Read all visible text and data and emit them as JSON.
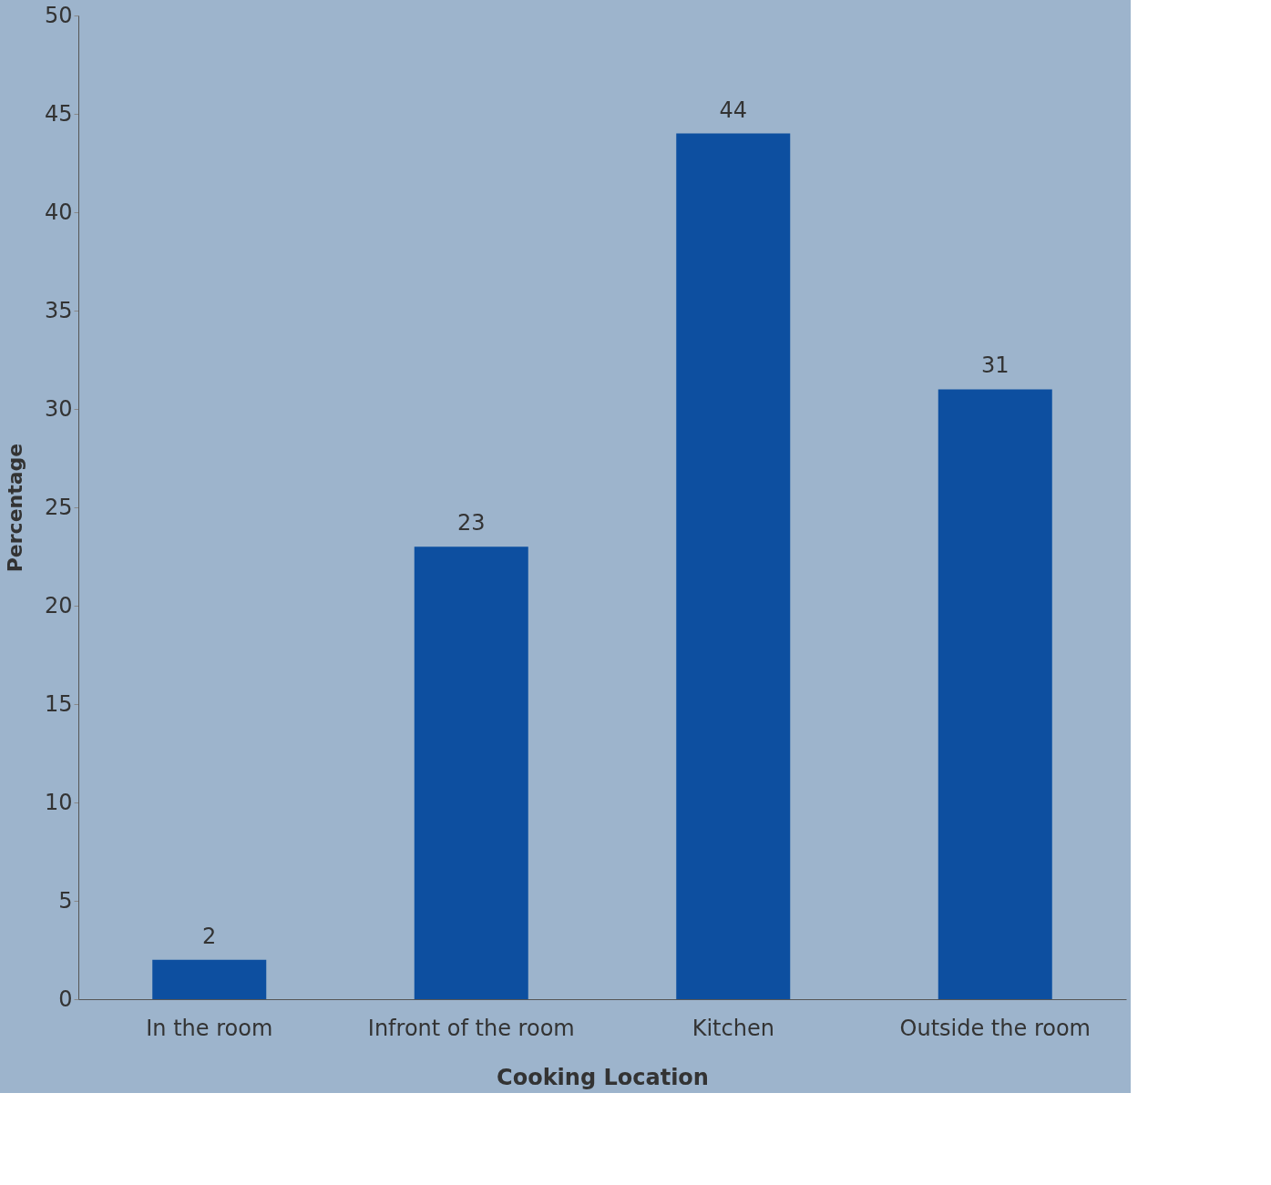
{
  "chart_data": {
    "type": "bar",
    "categories": [
      "In the room",
      "Infront of the room",
      "Kitchen",
      "Outside the room"
    ],
    "values": [
      2,
      23,
      44,
      31
    ],
    "color": "#0d4fa0",
    "xlabel": "Cooking Location",
    "ylabel": "Percentage",
    "ylim": [
      0,
      50
    ],
    "yticks": [
      0,
      5,
      10,
      15,
      20,
      25,
      30,
      35,
      40,
      45,
      50
    ],
    "data_labels": true,
    "grid": false
  }
}
